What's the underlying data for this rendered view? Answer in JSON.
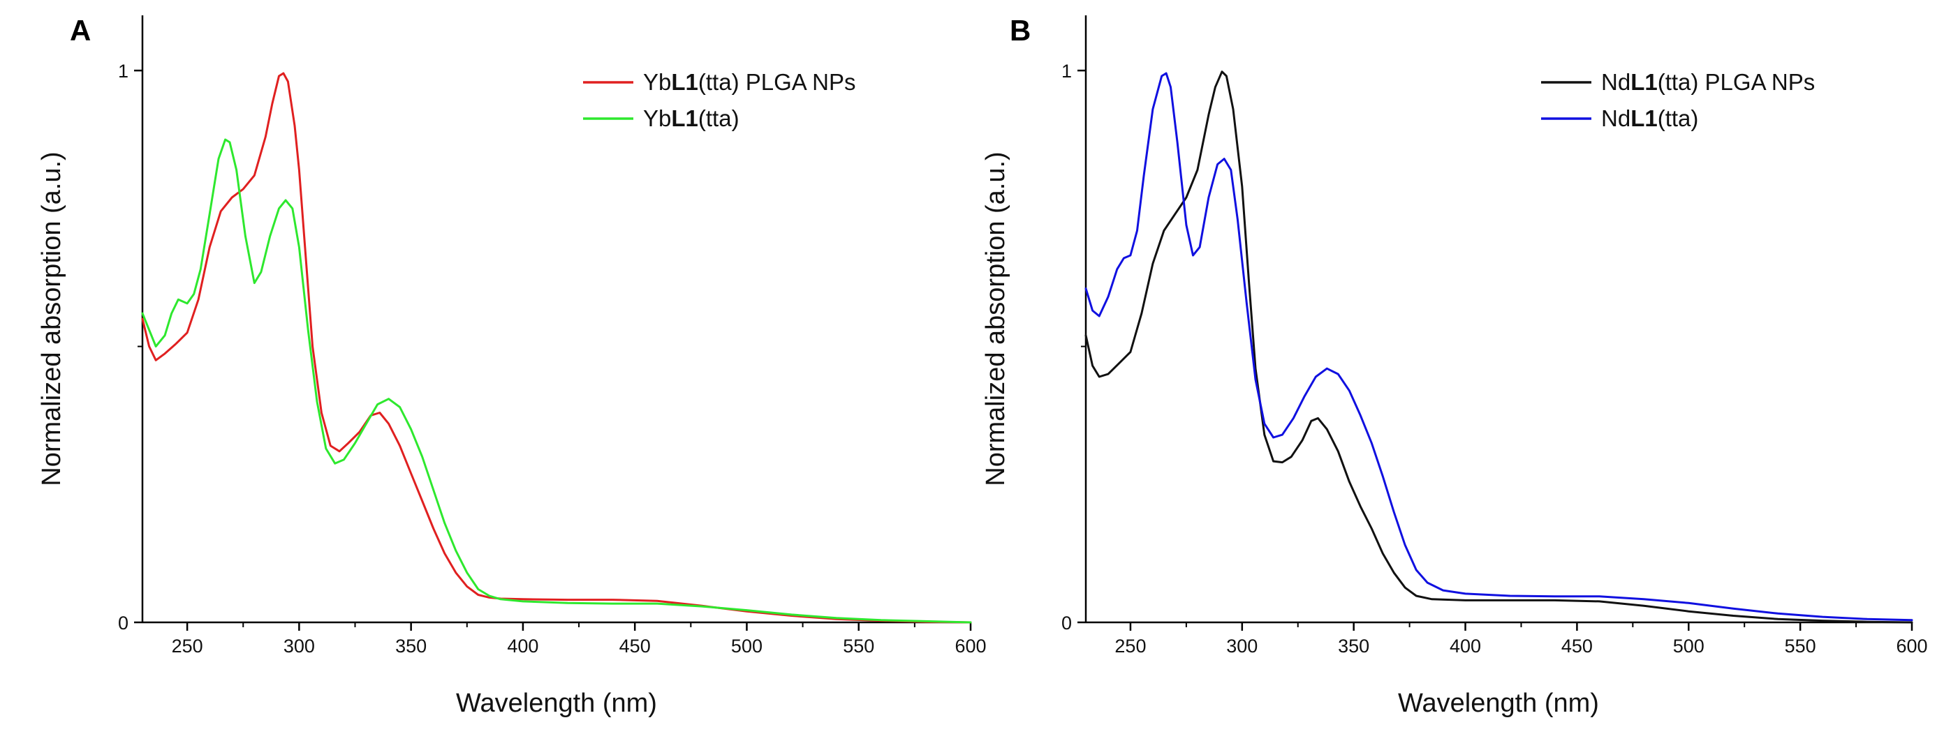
{
  "chart_data": [
    {
      "type": "line",
      "panel_label": "A",
      "xlabel": "Wavelength (nm)",
      "ylabel": "Normalized absorption (a.u.)",
      "xlim": [
        230,
        600
      ],
      "ylim": [
        0,
        1.1
      ],
      "x_ticks": [
        "250",
        "300",
        "350",
        "400",
        "450",
        "500",
        "550",
        "600"
      ],
      "y_ticks": [
        "0",
        "1"
      ],
      "legend_position": "top-right",
      "series": [
        {
          "name": "YbL1(tta) PLGA NPs",
          "legend_parts": [
            "Yb",
            "L1",
            "(tta) PLGA NPs"
          ],
          "color": "#e02020",
          "points": [
            [
              230,
              0.55
            ],
            [
              233,
              0.5
            ],
            [
              236,
              0.475
            ],
            [
              240,
              0.487
            ],
            [
              245,
              0.505
            ],
            [
              250,
              0.525
            ],
            [
              255,
              0.585
            ],
            [
              260,
              0.68
            ],
            [
              265,
              0.745
            ],
            [
              270,
              0.77
            ],
            [
              275,
              0.785
            ],
            [
              280,
              0.81
            ],
            [
              285,
              0.88
            ],
            [
              288,
              0.94
            ],
            [
              291,
              0.99
            ],
            [
              293,
              0.995
            ],
            [
              295,
              0.98
            ],
            [
              298,
              0.9
            ],
            [
              300,
              0.82
            ],
            [
              303,
              0.66
            ],
            [
              306,
              0.5
            ],
            [
              310,
              0.38
            ],
            [
              314,
              0.32
            ],
            [
              318,
              0.31
            ],
            [
              322,
              0.325
            ],
            [
              327,
              0.345
            ],
            [
              332,
              0.375
            ],
            [
              336,
              0.38
            ],
            [
              340,
              0.36
            ],
            [
              345,
              0.32
            ],
            [
              350,
              0.27
            ],
            [
              355,
              0.22
            ],
            [
              360,
              0.17
            ],
            [
              365,
              0.125
            ],
            [
              370,
              0.09
            ],
            [
              375,
              0.065
            ],
            [
              380,
              0.05
            ],
            [
              385,
              0.045
            ],
            [
              390,
              0.043
            ],
            [
              400,
              0.042
            ],
            [
              420,
              0.041
            ],
            [
              440,
              0.041
            ],
            [
              460,
              0.039
            ],
            [
              480,
              0.03
            ],
            [
              500,
              0.02
            ],
            [
              520,
              0.012
            ],
            [
              540,
              0.006
            ],
            [
              560,
              0.003
            ],
            [
              580,
              0.001
            ],
            [
              600,
              0.0
            ]
          ]
        },
        {
          "name": "YbL1(tta)",
          "legend_parts": [
            "Yb",
            "L1",
            "(tta)"
          ],
          "color": "#2ee82e",
          "points": [
            [
              230,
              0.56
            ],
            [
              233,
              0.53
            ],
            [
              236,
              0.5
            ],
            [
              240,
              0.52
            ],
            [
              243,
              0.56
            ],
            [
              246,
              0.585
            ],
            [
              250,
              0.578
            ],
            [
              253,
              0.595
            ],
            [
              256,
              0.64
            ],
            [
              260,
              0.74
            ],
            [
              264,
              0.84
            ],
            [
              267,
              0.875
            ],
            [
              269,
              0.87
            ],
            [
              272,
              0.82
            ],
            [
              276,
              0.7
            ],
            [
              280,
              0.615
            ],
            [
              283,
              0.635
            ],
            [
              287,
              0.7
            ],
            [
              291,
              0.75
            ],
            [
              294,
              0.765
            ],
            [
              297,
              0.75
            ],
            [
              300,
              0.68
            ],
            [
              304,
              0.53
            ],
            [
              308,
              0.4
            ],
            [
              312,
              0.315
            ],
            [
              316,
              0.288
            ],
            [
              320,
              0.295
            ],
            [
              325,
              0.325
            ],
            [
              330,
              0.36
            ],
            [
              335,
              0.395
            ],
            [
              340,
              0.405
            ],
            [
              345,
              0.39
            ],
            [
              350,
              0.35
            ],
            [
              355,
              0.3
            ],
            [
              360,
              0.24
            ],
            [
              365,
              0.18
            ],
            [
              370,
              0.13
            ],
            [
              375,
              0.09
            ],
            [
              380,
              0.06
            ],
            [
              385,
              0.048
            ],
            [
              390,
              0.042
            ],
            [
              400,
              0.038
            ],
            [
              420,
              0.035
            ],
            [
              440,
              0.034
            ],
            [
              460,
              0.034
            ],
            [
              480,
              0.029
            ],
            [
              500,
              0.022
            ],
            [
              520,
              0.014
            ],
            [
              540,
              0.008
            ],
            [
              560,
              0.004
            ],
            [
              580,
              0.002
            ],
            [
              600,
              0.0
            ]
          ]
        }
      ]
    },
    {
      "type": "line",
      "panel_label": "B",
      "xlabel": "Wavelength (nm)",
      "ylabel": "Normalized absorption (a.u.)",
      "xlim": [
        230,
        600
      ],
      "ylim": [
        0,
        1.1
      ],
      "x_ticks": [
        "250",
        "300",
        "350",
        "400",
        "450",
        "500",
        "550",
        "600"
      ],
      "y_ticks": [
        "0",
        "1"
      ],
      "legend_position": "top-right",
      "series": [
        {
          "name": "NdL1(tta) PLGA NPs",
          "legend_parts": [
            "Nd",
            "L1",
            "(tta) PLGA NPs"
          ],
          "color": "#111111",
          "points": [
            [
              230,
              0.52
            ],
            [
              233,
              0.465
            ],
            [
              236,
              0.445
            ],
            [
              240,
              0.45
            ],
            [
              245,
              0.47
            ],
            [
              250,
              0.49
            ],
            [
              255,
              0.56
            ],
            [
              260,
              0.65
            ],
            [
              265,
              0.71
            ],
            [
              270,
              0.74
            ],
            [
              275,
              0.77
            ],
            [
              280,
              0.82
            ],
            [
              285,
              0.92
            ],
            [
              288,
              0.97
            ],
            [
              291,
              0.998
            ],
            [
              293,
              0.99
            ],
            [
              296,
              0.93
            ],
            [
              300,
              0.79
            ],
            [
              303,
              0.62
            ],
            [
              306,
              0.46
            ],
            [
              310,
              0.34
            ],
            [
              314,
              0.292
            ],
            [
              318,
              0.29
            ],
            [
              322,
              0.3
            ],
            [
              327,
              0.33
            ],
            [
              331,
              0.365
            ],
            [
              334,
              0.37
            ],
            [
              338,
              0.35
            ],
            [
              343,
              0.31
            ],
            [
              348,
              0.255
            ],
            [
              353,
              0.21
            ],
            [
              358,
              0.17
            ],
            [
              363,
              0.125
            ],
            [
              368,
              0.09
            ],
            [
              373,
              0.063
            ],
            [
              378,
              0.048
            ],
            [
              385,
              0.042
            ],
            [
              400,
              0.04
            ],
            [
              420,
              0.04
            ],
            [
              440,
              0.04
            ],
            [
              460,
              0.038
            ],
            [
              480,
              0.03
            ],
            [
              500,
              0.02
            ],
            [
              520,
              0.012
            ],
            [
              540,
              0.006
            ],
            [
              560,
              0.003
            ],
            [
              580,
              0.001
            ],
            [
              600,
              0.0
            ]
          ]
        },
        {
          "name": "NdL1(tta)",
          "legend_parts": [
            "Nd",
            "L1",
            "(tta)"
          ],
          "color": "#1010e0",
          "points": [
            [
              230,
              0.605
            ],
            [
              233,
              0.565
            ],
            [
              236,
              0.555
            ],
            [
              240,
              0.59
            ],
            [
              244,
              0.64
            ],
            [
              247,
              0.66
            ],
            [
              250,
              0.665
            ],
            [
              253,
              0.71
            ],
            [
              256,
              0.81
            ],
            [
              260,
              0.93
            ],
            [
              264,
              0.99
            ],
            [
              266,
              0.995
            ],
            [
              268,
              0.97
            ],
            [
              271,
              0.87
            ],
            [
              275,
              0.72
            ],
            [
              278,
              0.665
            ],
            [
              281,
              0.68
            ],
            [
              285,
              0.77
            ],
            [
              289,
              0.83
            ],
            [
              292,
              0.84
            ],
            [
              295,
              0.82
            ],
            [
              298,
              0.73
            ],
            [
              302,
              0.58
            ],
            [
              306,
              0.44
            ],
            [
              310,
              0.36
            ],
            [
              314,
              0.335
            ],
            [
              318,
              0.34
            ],
            [
              323,
              0.37
            ],
            [
              328,
              0.41
            ],
            [
              333,
              0.445
            ],
            [
              338,
              0.46
            ],
            [
              343,
              0.45
            ],
            [
              348,
              0.42
            ],
            [
              353,
              0.375
            ],
            [
              358,
              0.325
            ],
            [
              363,
              0.265
            ],
            [
              368,
              0.2
            ],
            [
              373,
              0.14
            ],
            [
              378,
              0.095
            ],
            [
              383,
              0.072
            ],
            [
              390,
              0.058
            ],
            [
              400,
              0.052
            ],
            [
              420,
              0.048
            ],
            [
              440,
              0.047
            ],
            [
              460,
              0.047
            ],
            [
              480,
              0.042
            ],
            [
              500,
              0.035
            ],
            [
              520,
              0.025
            ],
            [
              540,
              0.016
            ],
            [
              560,
              0.01
            ],
            [
              580,
              0.006
            ],
            [
              600,
              0.004
            ]
          ]
        }
      ]
    }
  ]
}
